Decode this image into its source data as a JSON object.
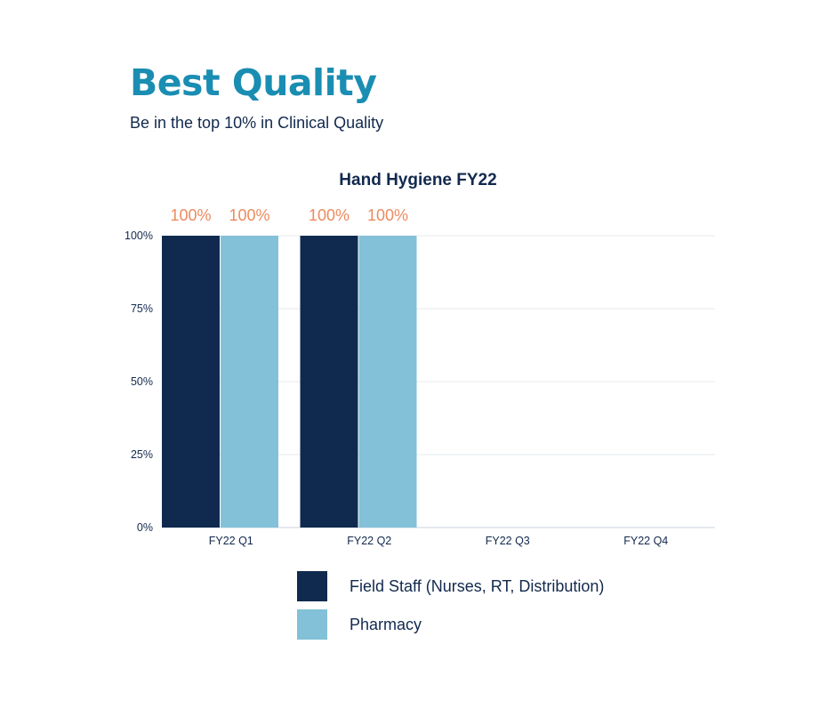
{
  "header": {
    "title": "Best Quality",
    "subtitle": "Be in the top 10% in Clinical Quality"
  },
  "chart_data": {
    "type": "bar",
    "title": "Hand Hygiene FY22",
    "categories": [
      "FY22 Q1",
      "FY22 Q2",
      "FY22 Q3",
      "FY22 Q4"
    ],
    "series": [
      {
        "name": "Field Staff (Nurses, RT, Distribution)",
        "values": [
          100,
          100,
          null,
          null
        ],
        "color": "#102a4f"
      },
      {
        "name": "Pharmacy",
        "values": [
          100,
          100,
          null,
          null
        ],
        "color": "#82c1d8"
      }
    ],
    "ylim": [
      0,
      100
    ],
    "yticks": [
      "0%",
      "25%",
      "50%",
      "75%",
      "100%"
    ],
    "data_labels": [
      [
        "100%",
        "100%",
        "",
        ""
      ],
      [
        "100%",
        "100%",
        "",
        ""
      ]
    ],
    "data_label_color": "#ec8a5e",
    "grid": true,
    "legend": "bottom",
    "xlabel": "",
    "ylabel": ""
  }
}
